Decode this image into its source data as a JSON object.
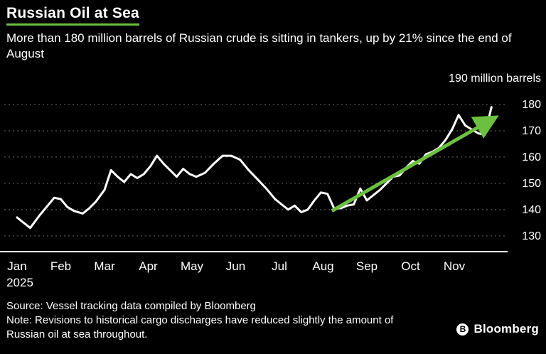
{
  "header": {
    "title": "Russian Oil at Sea",
    "subtitle": "More than 180 million barrels of Russian crude is sitting in tankers, up by 21% since the end of August"
  },
  "chart_data": {
    "type": "line",
    "title": "Russian Oil at Sea",
    "unit_label": "190 million barrels",
    "ylabel": "million barrels",
    "xlabel": "",
    "x_tick_labels": [
      "Jan",
      "Feb",
      "Mar",
      "Apr",
      "May",
      "Jun",
      "Jul",
      "Aug",
      "Sep",
      "Oct",
      "Nov"
    ],
    "x_year_label": "2025",
    "y_ticks": [
      130,
      140,
      150,
      160,
      170,
      180
    ],
    "ylim": [
      124,
      190
    ],
    "xlim": [
      0,
      11.2
    ],
    "grid": "dashed-horizontal",
    "legend": "none",
    "series": [
      {
        "name": "Russian crude oil at sea (million barrels)",
        "points": [
          [
            0,
            137
          ],
          [
            0.15,
            135
          ],
          [
            0.3,
            133
          ],
          [
            0.5,
            137.5
          ],
          [
            0.7,
            141.5
          ],
          [
            0.85,
            144.5
          ],
          [
            1.0,
            144
          ],
          [
            1.15,
            141
          ],
          [
            1.3,
            139.5
          ],
          [
            1.5,
            138.5
          ],
          [
            1.65,
            140.5
          ],
          [
            1.8,
            143
          ],
          [
            2.0,
            147.5
          ],
          [
            2.15,
            155
          ],
          [
            2.3,
            152.5
          ],
          [
            2.45,
            150.5
          ],
          [
            2.6,
            153.5
          ],
          [
            2.75,
            152
          ],
          [
            2.9,
            153.5
          ],
          [
            3.05,
            156.5
          ],
          [
            3.2,
            160.5
          ],
          [
            3.35,
            157.5
          ],
          [
            3.5,
            155
          ],
          [
            3.65,
            152.5
          ],
          [
            3.8,
            155.5
          ],
          [
            3.95,
            153.5
          ],
          [
            4.1,
            152.5
          ],
          [
            4.3,
            154
          ],
          [
            4.5,
            157.5
          ],
          [
            4.7,
            160.5
          ],
          [
            4.9,
            160.5
          ],
          [
            5.1,
            159
          ],
          [
            5.3,
            155
          ],
          [
            5.5,
            151.5
          ],
          [
            5.7,
            148
          ],
          [
            5.9,
            144
          ],
          [
            6.05,
            142
          ],
          [
            6.2,
            140
          ],
          [
            6.35,
            141.5
          ],
          [
            6.5,
            139
          ],
          [
            6.65,
            140
          ],
          [
            6.8,
            143.5
          ],
          [
            6.95,
            146.5
          ],
          [
            7.1,
            146
          ],
          [
            7.25,
            140.5
          ],
          [
            7.4,
            140.5
          ],
          [
            7.55,
            141.5
          ],
          [
            7.7,
            142
          ],
          [
            7.85,
            148
          ],
          [
            8.0,
            143.5
          ],
          [
            8.15,
            145.5
          ],
          [
            8.3,
            147.5
          ],
          [
            8.45,
            150
          ],
          [
            8.6,
            152.5
          ],
          [
            8.75,
            153
          ],
          [
            8.9,
            156
          ],
          [
            9.05,
            158.5
          ],
          [
            9.2,
            157.5
          ],
          [
            9.35,
            161
          ],
          [
            9.5,
            162
          ],
          [
            9.65,
            163.5
          ],
          [
            9.8,
            166.5
          ],
          [
            9.95,
            170.5
          ],
          [
            10.1,
            176
          ],
          [
            10.25,
            172
          ],
          [
            10.4,
            170.5
          ],
          [
            10.55,
            169
          ],
          [
            10.7,
            168.5
          ],
          [
            10.85,
            179
          ]
        ]
      }
    ],
    "annotation_arrow": {
      "from": [
        7.2,
        139.5
      ],
      "to": [
        10.88,
        174.5
      ]
    },
    "colors": {
      "background": "#000000",
      "line": "#ffffff",
      "grid": "#6a6a6a",
      "axis": "#ffffff",
      "accent_green": "#6cc040",
      "text": "#ffffff"
    }
  },
  "footer": {
    "source": "Source: Vessel tracking data compiled by Bloomberg",
    "note": "Note: Revisions to historical cargo discharges have reduced slightly the amount of Russian oil at sea throughout.",
    "brand": "Bloomberg",
    "brand_initial": "B"
  }
}
